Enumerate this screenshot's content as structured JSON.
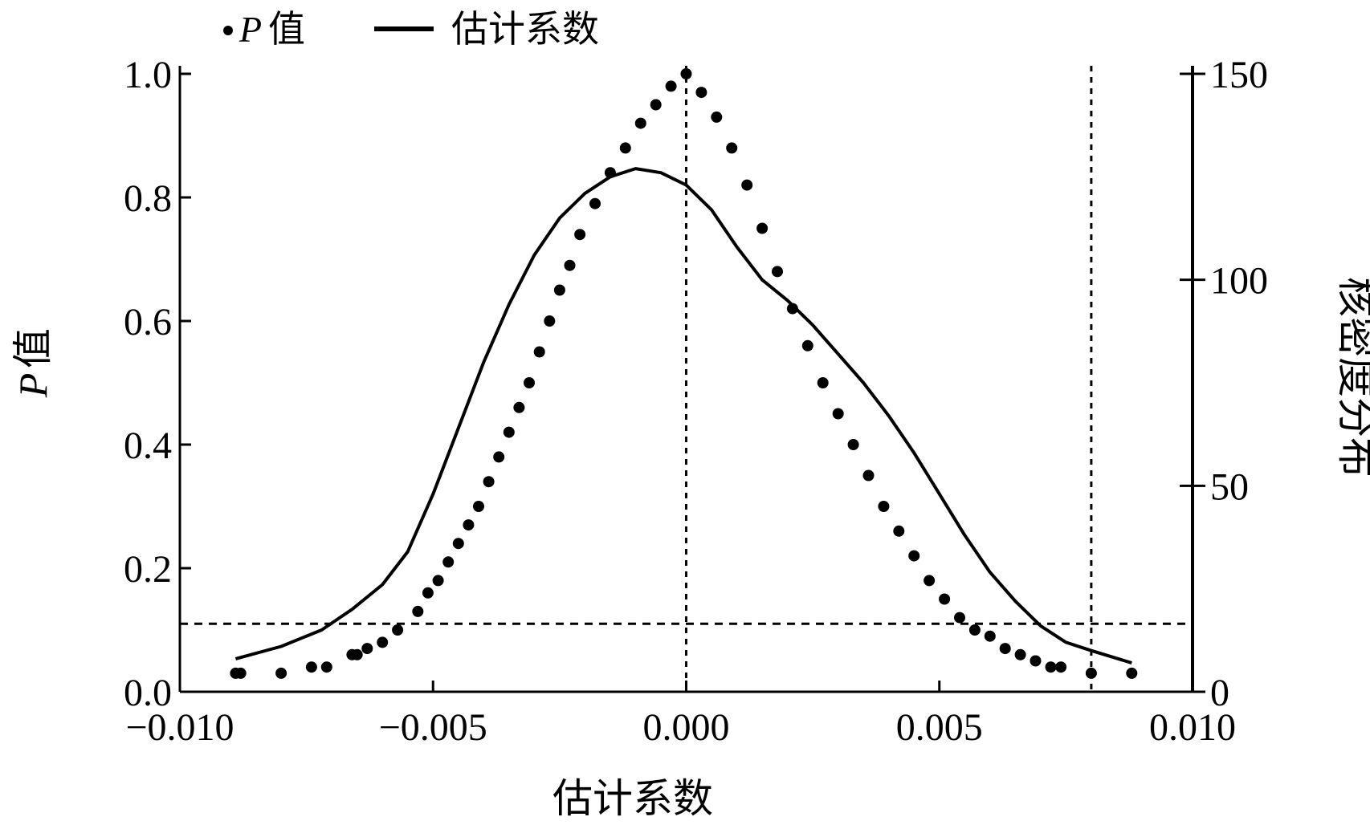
{
  "chart_data": {
    "type": "scatter",
    "legend": {
      "placement": "top-left",
      "entries": [
        {
          "label_italic": "P",
          "label": "值",
          "marker": "dot"
        },
        {
          "label": "估计系数",
          "marker": "line"
        }
      ]
    },
    "xlabel": "估计系数",
    "ylabel_left": {
      "italic": "P",
      "text": "值"
    },
    "ylabel_right": "核密度分布",
    "xlim": [
      -0.01,
      0.01
    ],
    "ylim_left": [
      0.0,
      1.0
    ],
    "ylim_right": [
      0,
      150
    ],
    "x_ticks": [
      "−0.010",
      "−0.005",
      "0.000",
      "0.005",
      "0.010"
    ],
    "x_tick_values": [
      -0.01,
      -0.005,
      0.0,
      0.005,
      0.01
    ],
    "y_left_ticks": [
      "0.0",
      "0.2",
      "0.4",
      "0.6",
      "0.8",
      "1.0"
    ],
    "y_left_tick_values": [
      0.0,
      0.2,
      0.4,
      0.6,
      0.8,
      1.0
    ],
    "y_right_ticks": [
      "0",
      "50",
      "100",
      "150"
    ],
    "y_right_tick_values": [
      0,
      50,
      100,
      150
    ],
    "grid": false,
    "reference_lines": [
      {
        "axis": "x",
        "value": 0.0,
        "style": "dotted"
      },
      {
        "axis": "x",
        "value": 0.008,
        "style": "dotted"
      },
      {
        "axis": "y_left",
        "value": 0.11,
        "style": "dashed"
      }
    ],
    "series": [
      {
        "name": "P值",
        "type": "scatter",
        "axis": "left",
        "points": [
          [
            -0.0089,
            0.03
          ],
          [
            -0.0088,
            0.03
          ],
          [
            -0.008,
            0.03
          ],
          [
            -0.0074,
            0.04
          ],
          [
            -0.0071,
            0.04
          ],
          [
            -0.0066,
            0.06
          ],
          [
            -0.0065,
            0.06
          ],
          [
            -0.0063,
            0.07
          ],
          [
            -0.006,
            0.08
          ],
          [
            -0.0057,
            0.1
          ],
          [
            -0.0053,
            0.13
          ],
          [
            -0.0051,
            0.16
          ],
          [
            -0.0049,
            0.18
          ],
          [
            -0.0047,
            0.21
          ],
          [
            -0.0045,
            0.24
          ],
          [
            -0.0043,
            0.27
          ],
          [
            -0.0041,
            0.3
          ],
          [
            -0.0039,
            0.34
          ],
          [
            -0.0037,
            0.38
          ],
          [
            -0.0035,
            0.42
          ],
          [
            -0.0033,
            0.46
          ],
          [
            -0.0031,
            0.5
          ],
          [
            -0.0029,
            0.55
          ],
          [
            -0.0027,
            0.6
          ],
          [
            -0.0025,
            0.65
          ],
          [
            -0.0023,
            0.69
          ],
          [
            -0.0021,
            0.74
          ],
          [
            -0.0018,
            0.79
          ],
          [
            -0.0015,
            0.84
          ],
          [
            -0.0012,
            0.88
          ],
          [
            -0.0009,
            0.92
          ],
          [
            -0.0006,
            0.95
          ],
          [
            -0.0003,
            0.98
          ],
          [
            0.0,
            1.0
          ],
          [
            0.0003,
            0.97
          ],
          [
            0.0006,
            0.93
          ],
          [
            0.0009,
            0.88
          ],
          [
            0.0012,
            0.82
          ],
          [
            0.0015,
            0.75
          ],
          [
            0.0018,
            0.68
          ],
          [
            0.0021,
            0.62
          ],
          [
            0.0024,
            0.56
          ],
          [
            0.0027,
            0.5
          ],
          [
            0.003,
            0.45
          ],
          [
            0.0033,
            0.4
          ],
          [
            0.0036,
            0.35
          ],
          [
            0.0039,
            0.3
          ],
          [
            0.0042,
            0.26
          ],
          [
            0.0045,
            0.22
          ],
          [
            0.0048,
            0.18
          ],
          [
            0.0051,
            0.15
          ],
          [
            0.0054,
            0.12
          ],
          [
            0.0057,
            0.1
          ],
          [
            0.006,
            0.09
          ],
          [
            0.0063,
            0.07
          ],
          [
            0.0066,
            0.06
          ],
          [
            0.0069,
            0.05
          ],
          [
            0.0072,
            0.04
          ],
          [
            0.0074,
            0.04
          ],
          [
            0.008,
            0.03
          ],
          [
            0.0088,
            0.03
          ]
        ]
      },
      {
        "name": "估计系数",
        "type": "line",
        "axis": "right",
        "points": [
          [
            -0.0089,
            8
          ],
          [
            -0.008,
            11
          ],
          [
            -0.0072,
            15
          ],
          [
            -0.0066,
            20
          ],
          [
            -0.006,
            26
          ],
          [
            -0.0055,
            34
          ],
          [
            -0.005,
            48
          ],
          [
            -0.0045,
            64
          ],
          [
            -0.004,
            80
          ],
          [
            -0.0035,
            94
          ],
          [
            -0.003,
            106
          ],
          [
            -0.0025,
            115
          ],
          [
            -0.002,
            121
          ],
          [
            -0.0015,
            125
          ],
          [
            -0.001,
            127
          ],
          [
            -0.0005,
            126
          ],
          [
            0.0,
            123
          ],
          [
            0.0005,
            117
          ],
          [
            0.001,
            108
          ],
          [
            0.0015,
            100
          ],
          [
            0.002,
            95
          ],
          [
            0.0025,
            89
          ],
          [
            0.003,
            82
          ],
          [
            0.0035,
            75
          ],
          [
            0.004,
            67
          ],
          [
            0.0045,
            58
          ],
          [
            0.005,
            48
          ],
          [
            0.0055,
            38
          ],
          [
            0.006,
            29
          ],
          [
            0.0065,
            22
          ],
          [
            0.007,
            16
          ],
          [
            0.0075,
            12
          ],
          [
            0.008,
            10
          ],
          [
            0.0088,
            7
          ]
        ]
      }
    ]
  }
}
